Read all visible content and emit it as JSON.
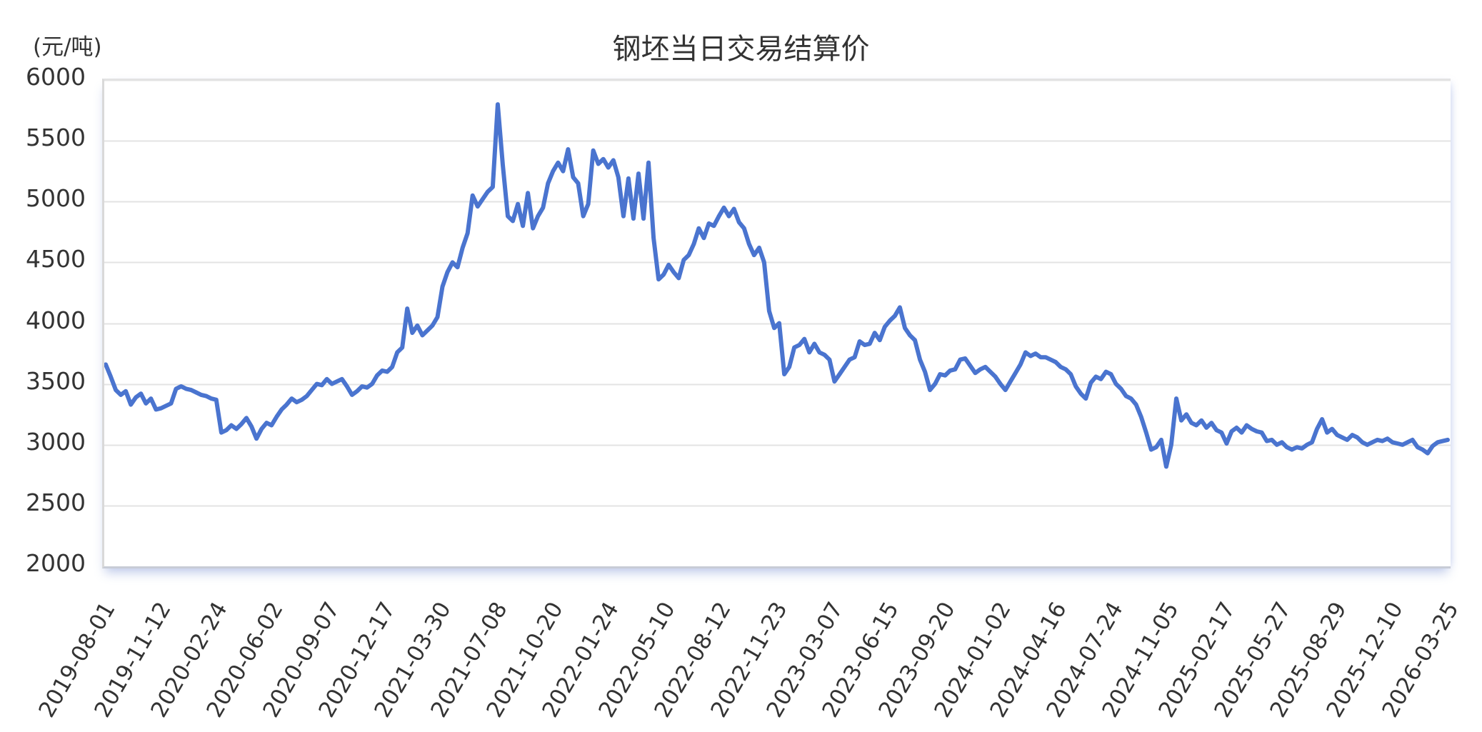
{
  "title": "钢坯当日交易结算价",
  "y_unit": "(元/吨)",
  "colors": {
    "line": "#4a74cf",
    "grid": "#e3e3e3",
    "text": "#333333"
  },
  "chart_data": {
    "type": "line",
    "title": "钢坯当日交易结算价",
    "xlabel": "",
    "ylabel": "(元/吨)",
    "ylim": [
      2000,
      6000
    ],
    "yticks": [
      2000,
      2500,
      3000,
      3500,
      4000,
      4500,
      5000,
      5500,
      6000
    ],
    "grid": true,
    "legend": "none",
    "xticks": [
      "2019-08-01",
      "2019-11-12",
      "2020-02-24",
      "2020-06-02",
      "2020-09-07",
      "2020-12-17",
      "2021-03-30",
      "2021-07-08",
      "2021-10-20",
      "2022-01-24",
      "2022-05-10",
      "2022-08-12",
      "2022-11-23",
      "2023-03-07",
      "2023-06-15",
      "2023-09-20",
      "2024-01-02",
      "2024-04-16",
      "2024-07-24",
      "2024-11-05",
      "2025-02-17",
      "2025-05-27",
      "2025-08-29",
      "2025-12-10",
      "2026-03-25"
    ],
    "series": [
      {
        "name": "钢坯当日交易结算价",
        "x_start": "2019-08-01",
        "x_end": "2026-03-25",
        "values": [
          3660,
          3560,
          3450,
          3410,
          3440,
          3330,
          3390,
          3420,
          3340,
          3380,
          3290,
          3300,
          3320,
          3340,
          3460,
          3480,
          3460,
          3450,
          3430,
          3410,
          3400,
          3380,
          3370,
          3100,
          3120,
          3160,
          3130,
          3170,
          3220,
          3150,
          3050,
          3130,
          3180,
          3160,
          3230,
          3290,
          3330,
          3380,
          3350,
          3370,
          3400,
          3450,
          3500,
          3490,
          3540,
          3500,
          3520,
          3540,
          3480,
          3410,
          3440,
          3480,
          3470,
          3500,
          3570,
          3610,
          3600,
          3640,
          3760,
          3800,
          4120,
          3920,
          3980,
          3900,
          3940,
          3980,
          4050,
          4300,
          4420,
          4500,
          4460,
          4620,
          4740,
          5050,
          4960,
          5020,
          5080,
          5120,
          5800,
          5300,
          4880,
          4840,
          4980,
          4800,
          5070,
          4780,
          4880,
          4950,
          5150,
          5250,
          5320,
          5250,
          5430,
          5200,
          5150,
          4880,
          4980,
          5420,
          5310,
          5350,
          5280,
          5340,
          5200,
          4880,
          5190,
          4860,
          5230,
          4860,
          5320,
          4700,
          4360,
          4400,
          4480,
          4420,
          4370,
          4520,
          4560,
          4650,
          4780,
          4700,
          4820,
          4800,
          4880,
          4950,
          4880,
          4940,
          4830,
          4780,
          4650,
          4560,
          4620,
          4500,
          4100,
          3960,
          4000,
          3580,
          3640,
          3800,
          3820,
          3870,
          3760,
          3830,
          3760,
          3740,
          3700,
          3520,
          3580,
          3640,
          3700,
          3720,
          3850,
          3820,
          3830,
          3920,
          3860,
          3970,
          4020,
          4060,
          4130,
          3960,
          3900,
          3860,
          3700,
          3600,
          3450,
          3500,
          3580,
          3570,
          3610,
          3620,
          3700,
          3710,
          3650,
          3590,
          3620,
          3640,
          3600,
          3560,
          3500,
          3450,
          3520,
          3590,
          3660,
          3760,
          3730,
          3750,
          3720,
          3720,
          3700,
          3680,
          3640,
          3620,
          3580,
          3480,
          3420,
          3380,
          3510,
          3560,
          3540,
          3600,
          3580,
          3500,
          3460,
          3400,
          3380,
          3330,
          3230,
          3100,
          2960,
          2980,
          3040,
          2820,
          3000,
          3380,
          3200,
          3250,
          3180,
          3160,
          3200,
          3140,
          3180,
          3120,
          3100,
          3010,
          3110,
          3140,
          3100,
          3160,
          3130,
          3110,
          3100,
          3030,
          3040,
          3000,
          3020,
          2980,
          2960,
          2980,
          2970,
          3000,
          3020,
          3130,
          3210,
          3100,
          3130,
          3080,
          3060,
          3040,
          3080,
          3060,
          3020,
          3000,
          3020,
          3040,
          3030,
          3050,
          3020,
          3010,
          3000,
          3020,
          3040,
          2980,
          2960,
          2930,
          2990,
          3020,
          3030,
          3040
        ]
      }
    ]
  }
}
